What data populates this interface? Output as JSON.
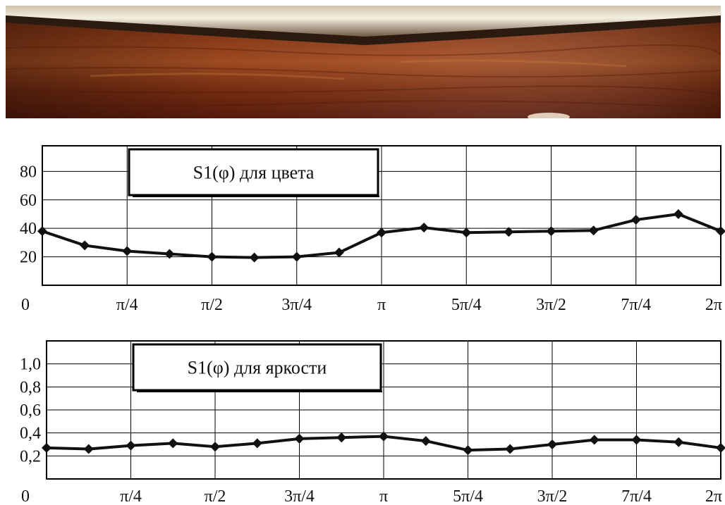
{
  "photo": {
    "colors": {
      "top_shine": "#f5efe0",
      "dark_band": "#2b1a10",
      "wood_dark": "#5a1c0c",
      "wood_mid": "#8c3a18",
      "wood_light": "#b5632e"
    }
  },
  "chart_data": [
    {
      "type": "line",
      "title": "S1(φ) для цвета",
      "xlabel": "",
      "ylabel": "",
      "x_tick_labels": [
        "0",
        "π/4",
        "π/2",
        "3π/4",
        "π",
        "5π/4",
        "3π/2",
        "7π/4",
        "2π"
      ],
      "y_tick_labels": [
        "20",
        "40",
        "60",
        "80"
      ],
      "y_ticks": [
        20,
        40,
        60,
        80
      ],
      "xlim": [
        0,
        6.2832
      ],
      "ylim": [
        0,
        98
      ],
      "grid": true,
      "series": [
        {
          "x": [
            0,
            0.3927,
            0.7854,
            1.1781,
            1.5708,
            1.9635,
            2.3562,
            2.7489,
            3.1416,
            3.5343,
            3.927,
            4.3197,
            4.7124,
            5.1051,
            5.4978,
            5.8905,
            6.2832
          ],
          "values": [
            38,
            28,
            24,
            22,
            20,
            19.5,
            20,
            23,
            37,
            40.5,
            37,
            37.5,
            38,
            38.5,
            46,
            50,
            38
          ]
        }
      ]
    },
    {
      "type": "line",
      "title": "S1(φ) для яркости",
      "xlabel": "",
      "ylabel": "",
      "x_tick_labels": [
        "0",
        "π/4",
        "π/2",
        "3π/4",
        "π",
        "5π/4",
        "3π/2",
        "7π/4",
        "2π"
      ],
      "y_tick_labels": [
        "0,2",
        "0,4",
        "0,6",
        "0,8",
        "1,0"
      ],
      "y_ticks": [
        0.2,
        0.4,
        0.6,
        0.8,
        1.0
      ],
      "xlim": [
        0,
        6.2832
      ],
      "ylim": [
        0,
        1.2
      ],
      "grid": true,
      "series": [
        {
          "x": [
            0,
            0.3927,
            0.7854,
            1.1781,
            1.5708,
            1.9635,
            2.3562,
            2.7489,
            3.1416,
            3.5343,
            3.927,
            4.3197,
            4.7124,
            5.1051,
            5.4978,
            5.8905,
            6.2832
          ],
          "values": [
            0.27,
            0.26,
            0.29,
            0.31,
            0.28,
            0.31,
            0.35,
            0.36,
            0.37,
            0.33,
            0.25,
            0.26,
            0.3,
            0.34,
            0.34,
            0.32,
            0.27
          ]
        }
      ]
    }
  ]
}
